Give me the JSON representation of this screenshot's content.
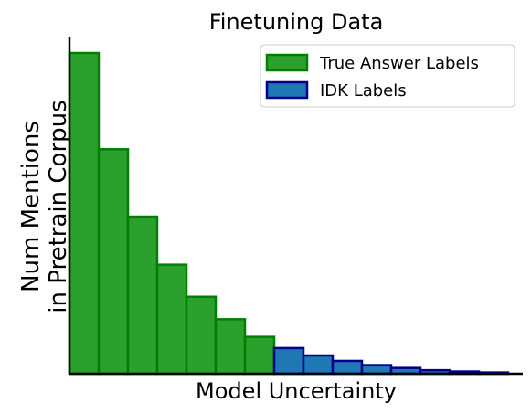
{
  "chart_data": {
    "type": "bar",
    "title": "Finetuning Data",
    "xlabel": "Model Uncertainty",
    "ylabel_lines": [
      "Num Mentions",
      "in Pretrain Corpus"
    ],
    "ylim": [
      0,
      100
    ],
    "grid": false,
    "legend_position": "top-right",
    "series": [
      {
        "name": "True Answer Labels",
        "fill": "#2ca02c",
        "edge": "#008000",
        "values": [
          100,
          70,
          49,
          34,
          24,
          17,
          11.5
        ]
      },
      {
        "name": "IDK Labels",
        "fill": "#1f77b4",
        "edge": "#00008b",
        "values": [
          8,
          5.7,
          4,
          2.7,
          1.8,
          1.1,
          0.7,
          0.4
        ]
      }
    ]
  }
}
